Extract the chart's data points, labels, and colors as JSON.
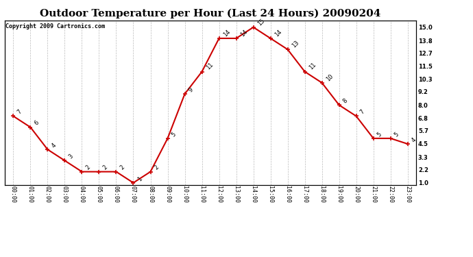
{
  "title": "Outdoor Temperature per Hour (Last 24 Hours) 20090204",
  "copyright": "Copyright 2009 Cartronics.com",
  "hours": [
    "00:00",
    "01:00",
    "02:00",
    "03:00",
    "04:00",
    "05:00",
    "06:00",
    "07:00",
    "08:00",
    "09:00",
    "10:00",
    "11:00",
    "12:00",
    "13:00",
    "14:00",
    "15:00",
    "16:00",
    "17:00",
    "18:00",
    "19:00",
    "20:00",
    "21:00",
    "22:00",
    "23:00"
  ],
  "temps": [
    7,
    6,
    4,
    3,
    2,
    2,
    2,
    1,
    2,
    5,
    9,
    11,
    14,
    14,
    15,
    14,
    13,
    11,
    10,
    8,
    7,
    5,
    5,
    4.5
  ],
  "line_color": "#cc0000",
  "marker_color": "#cc0000",
  "bg_color": "#ffffff",
  "grid_color": "#bbbbbb",
  "yticks": [
    1.0,
    2.2,
    3.3,
    4.5,
    5.7,
    6.8,
    8.0,
    9.2,
    10.3,
    11.5,
    12.7,
    13.8,
    15.0
  ],
  "ylim": [
    0.8,
    15.6
  ],
  "title_fontsize": 11,
  "copyright_fontsize": 6,
  "label_fontsize": 6,
  "annot_fontsize": 6
}
